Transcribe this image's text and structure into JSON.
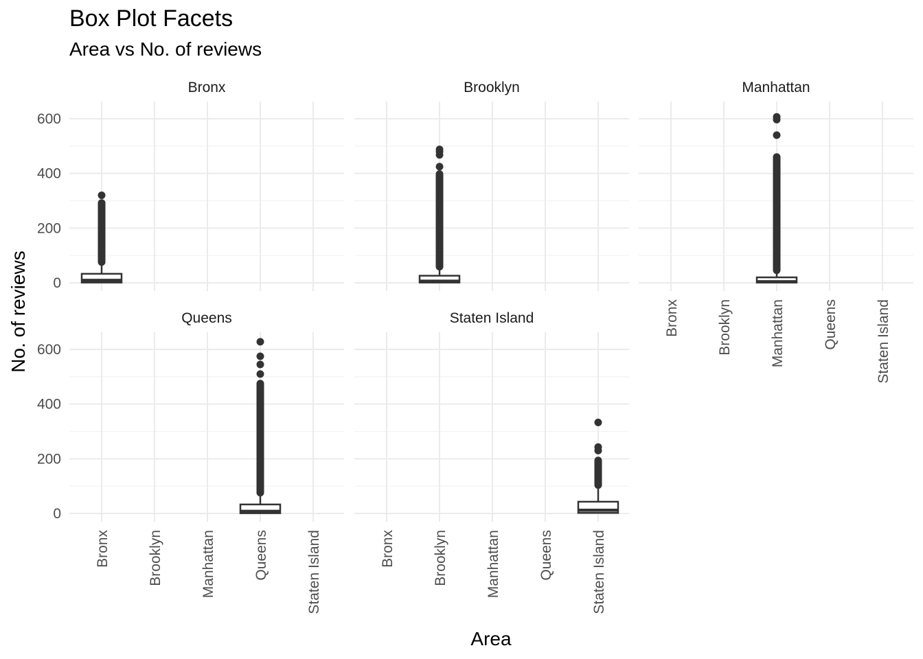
{
  "chart_data": {
    "type": "box",
    "title": "Box Plot Facets",
    "subtitle": "Area vs No. of reviews",
    "xlabel": "Area",
    "ylabel": "No. of reviews",
    "categories": [
      "Bronx",
      "Brooklyn",
      "Manhattan",
      "Queens",
      "Staten Island"
    ],
    "ylim": [
      -20,
      660
    ],
    "yticks": [
      0,
      200,
      400,
      600
    ],
    "ytick_labels": [
      "0",
      "200",
      "400",
      "600"
    ],
    "facet_layout": "3 columns, 2 rows",
    "facets": [
      {
        "label": "Bronx",
        "category": "Bronx",
        "box": {
          "q1": 1,
          "median": 9,
          "q3": 33,
          "whisker_low": 0,
          "whisker_high": 75
        },
        "outlier_range": [
          76,
          292
        ],
        "outliers_sparse": [
          320
        ]
      },
      {
        "label": "Brooklyn",
        "category": "Brooklyn",
        "box": {
          "q1": 1,
          "median": 6,
          "q3": 26,
          "whisker_low": 0,
          "whisker_high": 58
        },
        "outlier_range": [
          59,
          400
        ],
        "outliers_sparse": [
          425,
          468,
          480,
          488
        ]
      },
      {
        "label": "Manhattan",
        "category": "Manhattan",
        "box": {
          "q1": 1,
          "median": 4,
          "q3": 20,
          "whisker_low": 0,
          "whisker_high": 45
        },
        "outlier_range": [
          46,
          460
        ],
        "outliers_sparse": [
          540,
          597,
          607
        ]
      },
      {
        "label": "Queens",
        "category": "Queens",
        "box": {
          "q1": 1,
          "median": 8,
          "q3": 33,
          "whisker_low": 0,
          "whisker_high": 75
        },
        "outlier_range": [
          76,
          475
        ],
        "outliers_sparse": [
          510,
          545,
          575,
          628
        ]
      },
      {
        "label": "Staten Island",
        "category": "Staten Island",
        "box": {
          "q1": 2,
          "median": 12,
          "q3": 43,
          "whisker_low": 0,
          "whisker_high": 102
        },
        "outlier_range": [
          104,
          195
        ],
        "outliers_sparse": [
          230,
          243,
          333
        ]
      }
    ],
    "grid": true,
    "legend": "none",
    "colors": {
      "box_fill": "#ffffff",
      "box_stroke": "#333333",
      "outlier": "#333333",
      "grid": "#ebebeb"
    }
  }
}
